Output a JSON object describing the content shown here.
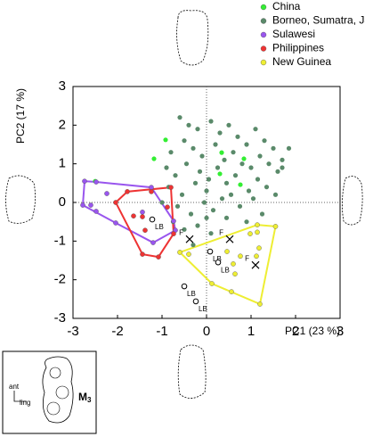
{
  "chart_data": {
    "type": "scatter",
    "x_label": "PC1 (23 %)",
    "y_label": "PC2 (17 %)",
    "xlim": [
      -3,
      3
    ],
    "ylim": [
      -3,
      3
    ],
    "xticks": [
      -3,
      -2,
      -1,
      0,
      1,
      2,
      3
    ],
    "yticks": [
      -3,
      -2,
      -1,
      0,
      1,
      2,
      3
    ],
    "zero_lines": true,
    "legend": "top-right",
    "series": [
      {
        "name": "China",
        "color": "#33ee33",
        "marker": "circle",
        "x": [
          -0.92,
          -1.18,
          0.34,
          0.84,
          0.3,
          0.76,
          -2.5
        ],
        "values": [
          1.62,
          1.13,
          1.29,
          1.13,
          0.74,
          0.46,
          0.55
        ]
      },
      {
        "name": "Borneo, Sumatra, Java",
        "color": "#5a8a6a",
        "marker": "circle",
        "x": [
          -0.6,
          -0.4,
          -0.2,
          0.1,
          0.3,
          0.5,
          0.7,
          0.9,
          1.1,
          1.3,
          1.5,
          1.7,
          1.85,
          -0.8,
          -0.5,
          -0.3,
          -0.1,
          0.2,
          0.4,
          0.6,
          0.8,
          1.0,
          1.2,
          1.4,
          1.6,
          -0.9,
          -0.7,
          -0.45,
          -0.15,
          0.05,
          0.25,
          0.45,
          0.65,
          0.95,
          1.15,
          1.35,
          -0.85,
          -0.55,
          -0.25,
          0.0,
          0.35,
          0.55,
          0.75,
          1.05,
          -0.65,
          -0.35,
          -0.05,
          0.15,
          0.45,
          -0.75,
          -0.5,
          -0.2,
          0.1,
          1.25,
          1.55,
          -1.0,
          -0.3,
          0.0,
          0.9,
          1.7
        ],
        "values": [
          2.2,
          2.0,
          1.9,
          2.1,
          1.8,
          2.0,
          1.7,
          1.5,
          1.9,
          1.6,
          1.4,
          1.1,
          1.4,
          1.3,
          1.6,
          1.4,
          1.2,
          1.5,
          1.1,
          1.3,
          1.0,
          0.9,
          1.2,
          1.0,
          0.8,
          0.9,
          0.7,
          1.0,
          0.8,
          0.6,
          0.9,
          0.5,
          0.7,
          0.3,
          0.6,
          0.4,
          0.4,
          0.2,
          0.5,
          0.3,
          0.1,
          0.2,
          -0.1,
          0.1,
          -0.1,
          -0.3,
          0.0,
          -0.2,
          -0.4,
          -0.5,
          -0.7,
          -0.6,
          -0.8,
          -0.3,
          0.2,
          0.0,
          -1.1,
          -0.4,
          -0.5,
          0.9
        ]
      },
      {
        "name": "Sulawesi",
        "color": "#9955ee",
        "marker": "circle",
        "hull": true,
        "x": [
          -2.48,
          -2.78,
          -2.24,
          -2.48,
          -2.04,
          -1.2,
          -1.44,
          -0.74,
          -0.7,
          -1.24,
          -2.74,
          -2.6
        ],
        "values": [
          0.53,
          -0.07,
          0.23,
          -0.23,
          -0.53,
          -1.04,
          -0.25,
          -0.48,
          -0.72,
          0.39,
          0.55,
          -0.07
        ]
      },
      {
        "name": "Philippines",
        "color": "#ee3333",
        "marker": "circle",
        "hull": true,
        "x": [
          -2.04,
          -1.78,
          -1.24,
          -1.64,
          -1.44,
          -1.38,
          -0.74,
          -1.44,
          -1.08,
          -0.88,
          -0.8
        ],
        "values": [
          0.0,
          0.28,
          0.28,
          -0.35,
          -0.37,
          -0.72,
          -0.81,
          -1.34,
          -1.41,
          -0.12,
          0.39
        ]
      },
      {
        "name": "New Guinea",
        "color": "#eeee33",
        "marker": "circle",
        "hull": true,
        "x": [
          1.14,
          1.14,
          1.18,
          1.12,
          0.76,
          0.6,
          0.46,
          0.64,
          0.12,
          0.56,
          1.2,
          -0.6,
          -0.4,
          0.98,
          1.55
        ],
        "values": [
          -0.58,
          -0.77,
          -1.18,
          -1.39,
          -1.39,
          -1.59,
          -1.27,
          -1.85,
          -2.1,
          -2.31,
          -2.63,
          -1.29,
          -1.34,
          -0.81,
          -0.62
        ]
      },
      {
        "marker": "open-circle",
        "color": "#000000",
        "x": [
          -1.22,
          0.08,
          0.26,
          -0.5,
          -0.24
        ],
        "values": [
          -0.44,
          -1.27,
          -1.55,
          -2.17,
          -2.56
        ],
        "labels": [
          "LB",
          "LB",
          "LB",
          "LB",
          "LB"
        ]
      },
      {
        "marker": "x",
        "color": "#000000",
        "x": [
          -0.38,
          0.52,
          1.1
        ],
        "values": [
          -0.95,
          -0.95,
          -1.62
        ],
        "labels": [
          "F",
          "F",
          "F"
        ]
      }
    ],
    "annotations": [
      "ant",
      "ling",
      "M",
      "3"
    ]
  }
}
